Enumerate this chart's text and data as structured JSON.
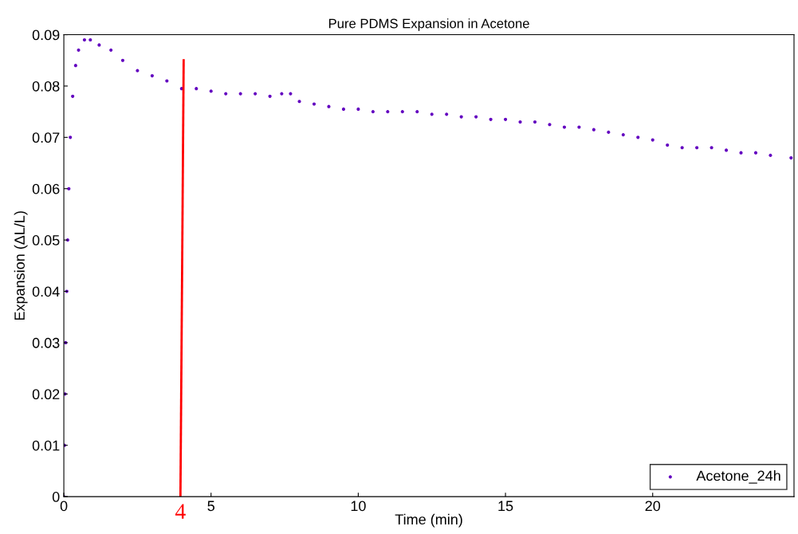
{
  "chart_data": {
    "type": "scatter",
    "title": "Pure PDMS Expansion in Acetone",
    "xlabel": "Time (min)",
    "ylabel": "Expansion (ΔL/L)",
    "xlim": [
      0,
      24.8
    ],
    "xticks": [
      0,
      5,
      10,
      15,
      20
    ],
    "ylim": [
      0,
      0.09
    ],
    "yticks": [
      0,
      0.01,
      0.02,
      0.03,
      0.04,
      0.05,
      0.06,
      0.07,
      0.08,
      0.09
    ],
    "grid": false,
    "legend": "bottom right",
    "series": [
      {
        "name": "Acetone_24h",
        "color": "#6300c0",
        "marker": "circle",
        "x": [
          0,
          0.02,
          0.04,
          0.06,
          0.1,
          0.13,
          0.17,
          0.22,
          0.3,
          0.4,
          0.5,
          0.7,
          0.9,
          1.2,
          1.6,
          2,
          2.5,
          3,
          3.5,
          4,
          4.5,
          5,
          5.5,
          6,
          6.5,
          7,
          7.4,
          7.7,
          8,
          8.5,
          9,
          9.5,
          10,
          10.5,
          11,
          11.5,
          12,
          12.5,
          13,
          13.5,
          14,
          14.5,
          15,
          15.5,
          16,
          16.5,
          17,
          17.5,
          18,
          18.5,
          19,
          19.5,
          20,
          20.5,
          21,
          21.5,
          22,
          22.5,
          23,
          23.5,
          24,
          24.7
        ],
        "values": [
          0,
          0.01,
          0.02,
          0.03,
          0.04,
          0.05,
          0.06,
          0.07,
          0.078,
          0.084,
          0.087,
          0.089,
          0.089,
          0.088,
          0.087,
          0.085,
          0.083,
          0.082,
          0.081,
          0.0795,
          0.0795,
          0.079,
          0.0785,
          0.0785,
          0.0785,
          0.078,
          0.0785,
          0.0785,
          0.077,
          0.0765,
          0.076,
          0.0755,
          0.0755,
          0.075,
          0.075,
          0.075,
          0.075,
          0.0745,
          0.0745,
          0.074,
          0.074,
          0.0735,
          0.0735,
          0.073,
          0.073,
          0.0725,
          0.072,
          0.072,
          0.0715,
          0.071,
          0.0705,
          0.07,
          0.0695,
          0.0685,
          0.068,
          0.068,
          0.068,
          0.0675,
          0.067,
          0.067,
          0.0665,
          0.066
        ]
      },
      {
        "type": "line",
        "color": "#ff0000",
        "x": [
          3.96,
          4.07
        ],
        "values": [
          0,
          0.085
        ]
      }
    ],
    "annotations": [
      "4"
    ]
  }
}
